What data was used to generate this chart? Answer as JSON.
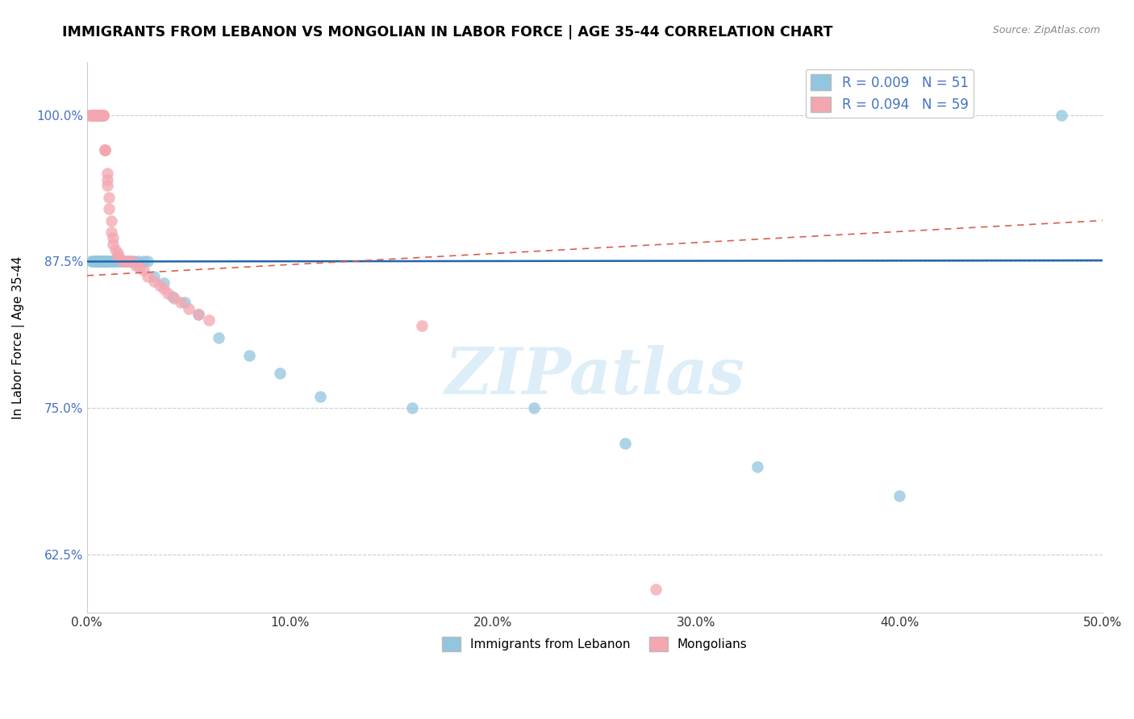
{
  "title": "IMMIGRANTS FROM LEBANON VS MONGOLIAN IN LABOR FORCE | AGE 35-44 CORRELATION CHART",
  "source": "Source: ZipAtlas.com",
  "ylabel": "In Labor Force | Age 35-44",
  "xlim": [
    0.0,
    0.5
  ],
  "ylim": [
    0.575,
    1.045
  ],
  "yticks": [
    0.625,
    0.75,
    0.875,
    1.0
  ],
  "ytick_labels": [
    "62.5%",
    "75.0%",
    "87.5%",
    "100.0%"
  ],
  "xticks": [
    0.0,
    0.1,
    0.2,
    0.3,
    0.4,
    0.5
  ],
  "xtick_labels": [
    "0.0%",
    "10.0%",
    "20.0%",
    "30.0%",
    "40.0%",
    "50.0%"
  ],
  "legend_blue_label": "R = 0.009   N = 51",
  "legend_pink_label": "R = 0.094   N = 59",
  "blue_color": "#92c5de",
  "pink_color": "#f4a6b0",
  "blue_line_color": "#2166ac",
  "pink_line_color": "#d6604d",
  "watermark_text": "ZIPatlas",
  "blue_line_y0": 0.875,
  "blue_line_y1": 0.876,
  "pink_line_y0": 0.863,
  "pink_line_y1": 0.91,
  "blue_x": [
    0.002,
    0.003,
    0.004,
    0.004,
    0.005,
    0.005,
    0.005,
    0.006,
    0.006,
    0.007,
    0.007,
    0.007,
    0.008,
    0.008,
    0.009,
    0.009,
    0.01,
    0.01,
    0.01,
    0.011,
    0.012,
    0.013,
    0.013,
    0.014,
    0.015,
    0.016,
    0.017,
    0.018,
    0.019,
    0.02,
    0.021,
    0.022,
    0.023,
    0.025,
    0.028,
    0.03,
    0.033,
    0.038,
    0.042,
    0.048,
    0.055,
    0.065,
    0.08,
    0.095,
    0.115,
    0.16,
    0.22,
    0.265,
    0.33,
    0.4,
    0.48
  ],
  "blue_y": [
    0.875,
    0.875,
    0.875,
    0.875,
    0.875,
    0.875,
    0.875,
    0.875,
    0.875,
    0.875,
    0.875,
    0.875,
    0.875,
    0.875,
    0.875,
    0.875,
    0.875,
    0.875,
    0.875,
    0.875,
    0.875,
    0.875,
    0.875,
    0.875,
    0.875,
    0.875,
    0.875,
    0.875,
    0.875,
    0.875,
    0.875,
    0.875,
    0.875,
    0.875,
    0.875,
    0.875,
    0.862,
    0.857,
    0.845,
    0.84,
    0.83,
    0.81,
    0.795,
    0.78,
    0.76,
    0.75,
    0.75,
    0.72,
    0.7,
    0.675,
    1.0
  ],
  "pink_x": [
    0.001,
    0.002,
    0.002,
    0.003,
    0.003,
    0.004,
    0.004,
    0.004,
    0.005,
    0.005,
    0.005,
    0.005,
    0.006,
    0.006,
    0.006,
    0.007,
    0.007,
    0.007,
    0.007,
    0.008,
    0.008,
    0.008,
    0.009,
    0.009,
    0.009,
    0.01,
    0.01,
    0.01,
    0.011,
    0.011,
    0.012,
    0.012,
    0.013,
    0.013,
    0.014,
    0.015,
    0.015,
    0.016,
    0.017,
    0.018,
    0.019,
    0.02,
    0.021,
    0.022,
    0.024,
    0.026,
    0.028,
    0.03,
    0.033,
    0.036,
    0.038,
    0.04,
    0.043,
    0.046,
    0.05,
    0.055,
    0.06,
    0.165,
    0.28
  ],
  "pink_y": [
    1.0,
    1.0,
    1.0,
    1.0,
    1.0,
    1.0,
    1.0,
    1.0,
    1.0,
    1.0,
    1.0,
    1.0,
    1.0,
    1.0,
    1.0,
    1.0,
    1.0,
    1.0,
    1.0,
    1.0,
    1.0,
    1.0,
    0.97,
    0.97,
    0.97,
    0.95,
    0.945,
    0.94,
    0.93,
    0.92,
    0.91,
    0.9,
    0.895,
    0.89,
    0.885,
    0.882,
    0.88,
    0.878,
    0.876,
    0.875,
    0.875,
    0.875,
    0.875,
    0.875,
    0.872,
    0.87,
    0.868,
    0.862,
    0.858,
    0.855,
    0.852,
    0.848,
    0.844,
    0.84,
    0.835,
    0.83,
    0.825,
    0.82,
    0.595
  ]
}
